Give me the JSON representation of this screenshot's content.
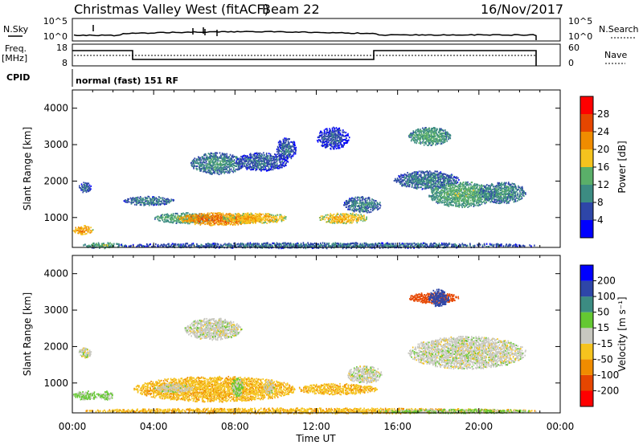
{
  "header": {
    "station": "Christmas Valley West (fitACF)",
    "beam": "Beam 22",
    "date": "16/Nov/2017"
  },
  "noise_panel": {
    "left_label": "N.Sky",
    "right_label": "N.Search",
    "left_ticks": [
      "10^5",
      "10^0"
    ],
    "right_ticks": [
      "10^5",
      "10^0"
    ]
  },
  "freq_panel": {
    "left_label_line1": "Freq.",
    "left_label_line2": "[MHz]",
    "right_label": "Nave",
    "left_ticks": [
      "18",
      "8"
    ],
    "right_ticks": [
      "60",
      "0"
    ]
  },
  "cpid": {
    "label": "CPID",
    "value": "normal (fast) 151 RF"
  },
  "chart_data": [
    {
      "type": "heatmap",
      "title": "",
      "ylabel": "Slant Range [km]",
      "xlabel": "",
      "y_ticks": [
        "4000",
        "3000",
        "2000",
        "1000"
      ],
      "ylim": [
        180,
        4500
      ],
      "colorbar": {
        "label": "Power [dB]",
        "ticks": [
          "28",
          "24",
          "20",
          "16",
          "12",
          "8",
          "4"
        ],
        "colors": [
          "#0000ff",
          "#2e46a8",
          "#3c8c82",
          "#5aaf69",
          "#f5c31e",
          "#f08c00",
          "#e64600",
          "#ff0000"
        ]
      },
      "regions": [
        {
          "t0": 0.0,
          "t1": 1.0,
          "r0": 550,
          "r1": 800,
          "power": 22
        },
        {
          "t0": 0.3,
          "t1": 0.9,
          "r0": 1700,
          "r1": 2000,
          "power": 8
        },
        {
          "t0": 0.5,
          "t1": 2.5,
          "r0": 180,
          "r1": 330,
          "power": 14
        },
        {
          "t0": 2.5,
          "t1": 5.0,
          "r0": 1350,
          "r1": 1600,
          "power": 10
        },
        {
          "t0": 4.0,
          "t1": 7.0,
          "r0": 850,
          "r1": 1150,
          "power": 14
        },
        {
          "t0": 5.2,
          "t1": 9.2,
          "r0": 800,
          "r1": 1150,
          "power": 24
        },
        {
          "t0": 5.8,
          "t1": 8.4,
          "r0": 2200,
          "r1": 2800,
          "power": 11
        },
        {
          "t0": 7.3,
          "t1": 10.6,
          "r0": 850,
          "r1": 1150,
          "power": 20
        },
        {
          "t0": 8.0,
          "t1": 10.6,
          "r0": 2300,
          "r1": 2800,
          "power": 8
        },
        {
          "t0": 10.0,
          "t1": 11.0,
          "r0": 2600,
          "r1": 3200,
          "power": 8
        },
        {
          "t0": 12.1,
          "t1": 14.5,
          "r0": 850,
          "r1": 1150,
          "power": 20
        },
        {
          "t0": 13.3,
          "t1": 15.2,
          "r0": 1150,
          "r1": 1600,
          "power": 10
        },
        {
          "t0": 12.0,
          "t1": 13.6,
          "r0": 2900,
          "r1": 3500,
          "power": 7
        },
        {
          "t0": 16.5,
          "t1": 18.6,
          "r0": 3000,
          "r1": 3500,
          "power": 13
        },
        {
          "t0": 15.8,
          "t1": 19.0,
          "r0": 1800,
          "r1": 2300,
          "power": 10
        },
        {
          "t0": 17.5,
          "t1": 20.8,
          "r0": 1300,
          "r1": 2000,
          "power": 14
        },
        {
          "t0": 20.0,
          "t1": 22.3,
          "r0": 1400,
          "r1": 2000,
          "power": 11
        },
        {
          "t0": 2.0,
          "t1": 22.8,
          "r0": 180,
          "r1": 330,
          "power": 9
        }
      ]
    },
    {
      "type": "heatmap",
      "title": "",
      "ylabel": "Slant Range [km]",
      "xlabel": "Time UT",
      "x_ticks": [
        "00:00",
        "04:00",
        "08:00",
        "12:00",
        "16:00",
        "20:00",
        "00:00"
      ],
      "y_ticks": [
        "4000",
        "3000",
        "2000",
        "1000"
      ],
      "ylim": [
        180,
        4500
      ],
      "colorbar": {
        "label": "Velocity [m s⁻¹]",
        "ticks": [
          "200",
          "100",
          "50",
          "15",
          "-15",
          "-50",
          "-100",
          "-200"
        ],
        "colors": [
          "#ff0000",
          "#e64600",
          "#f08c00",
          "#f5c31e",
          "#c8c8c0",
          "#64c832",
          "#3c8c82",
          "#2e46a8",
          "#0000ff"
        ]
      },
      "regions": [
        {
          "t0": 0.0,
          "t1": 1.3,
          "r0": 550,
          "r1": 800,
          "velocity": 20
        },
        {
          "t0": 1.3,
          "t1": 2.0,
          "r0": 550,
          "r1": 800,
          "velocity": 20
        },
        {
          "t0": 0.3,
          "t1": 0.9,
          "r0": 1700,
          "r1": 2000,
          "velocity": 0
        },
        {
          "t0": 3.0,
          "t1": 11.0,
          "r0": 500,
          "r1": 1200,
          "velocity": -40
        },
        {
          "t0": 4.0,
          "t1": 6.0,
          "r0": 750,
          "r1": 1000,
          "velocity": 0
        },
        {
          "t0": 7.8,
          "t1": 8.4,
          "r0": 650,
          "r1": 1150,
          "velocity": 20
        },
        {
          "t0": 9.4,
          "t1": 9.9,
          "r0": 700,
          "r1": 1100,
          "velocity": 0
        },
        {
          "t0": 11.0,
          "t1": 15.0,
          "r0": 700,
          "r1": 1000,
          "velocity": -40
        },
        {
          "t0": 13.5,
          "t1": 15.2,
          "r0": 1000,
          "r1": 1500,
          "velocity": 0
        },
        {
          "t0": 0.5,
          "t1": 22.8,
          "r0": 180,
          "r1": 330,
          "velocity": -40
        },
        {
          "t0": 15.0,
          "t1": 22.8,
          "r0": 180,
          "r1": 300,
          "velocity": 20
        },
        {
          "t0": 16.5,
          "t1": 22.3,
          "r0": 1400,
          "r1": 2300,
          "velocity": 0
        },
        {
          "t0": 16.5,
          "t1": 19.0,
          "r0": 3200,
          "r1": 3500,
          "velocity": -150
        },
        {
          "t0": 17.5,
          "t1": 18.5,
          "r0": 3100,
          "r1": 3600,
          "velocity": 150
        },
        {
          "t0": 5.5,
          "t1": 8.3,
          "r0": 2200,
          "r1": 2800,
          "velocity": 0
        }
      ]
    }
  ]
}
